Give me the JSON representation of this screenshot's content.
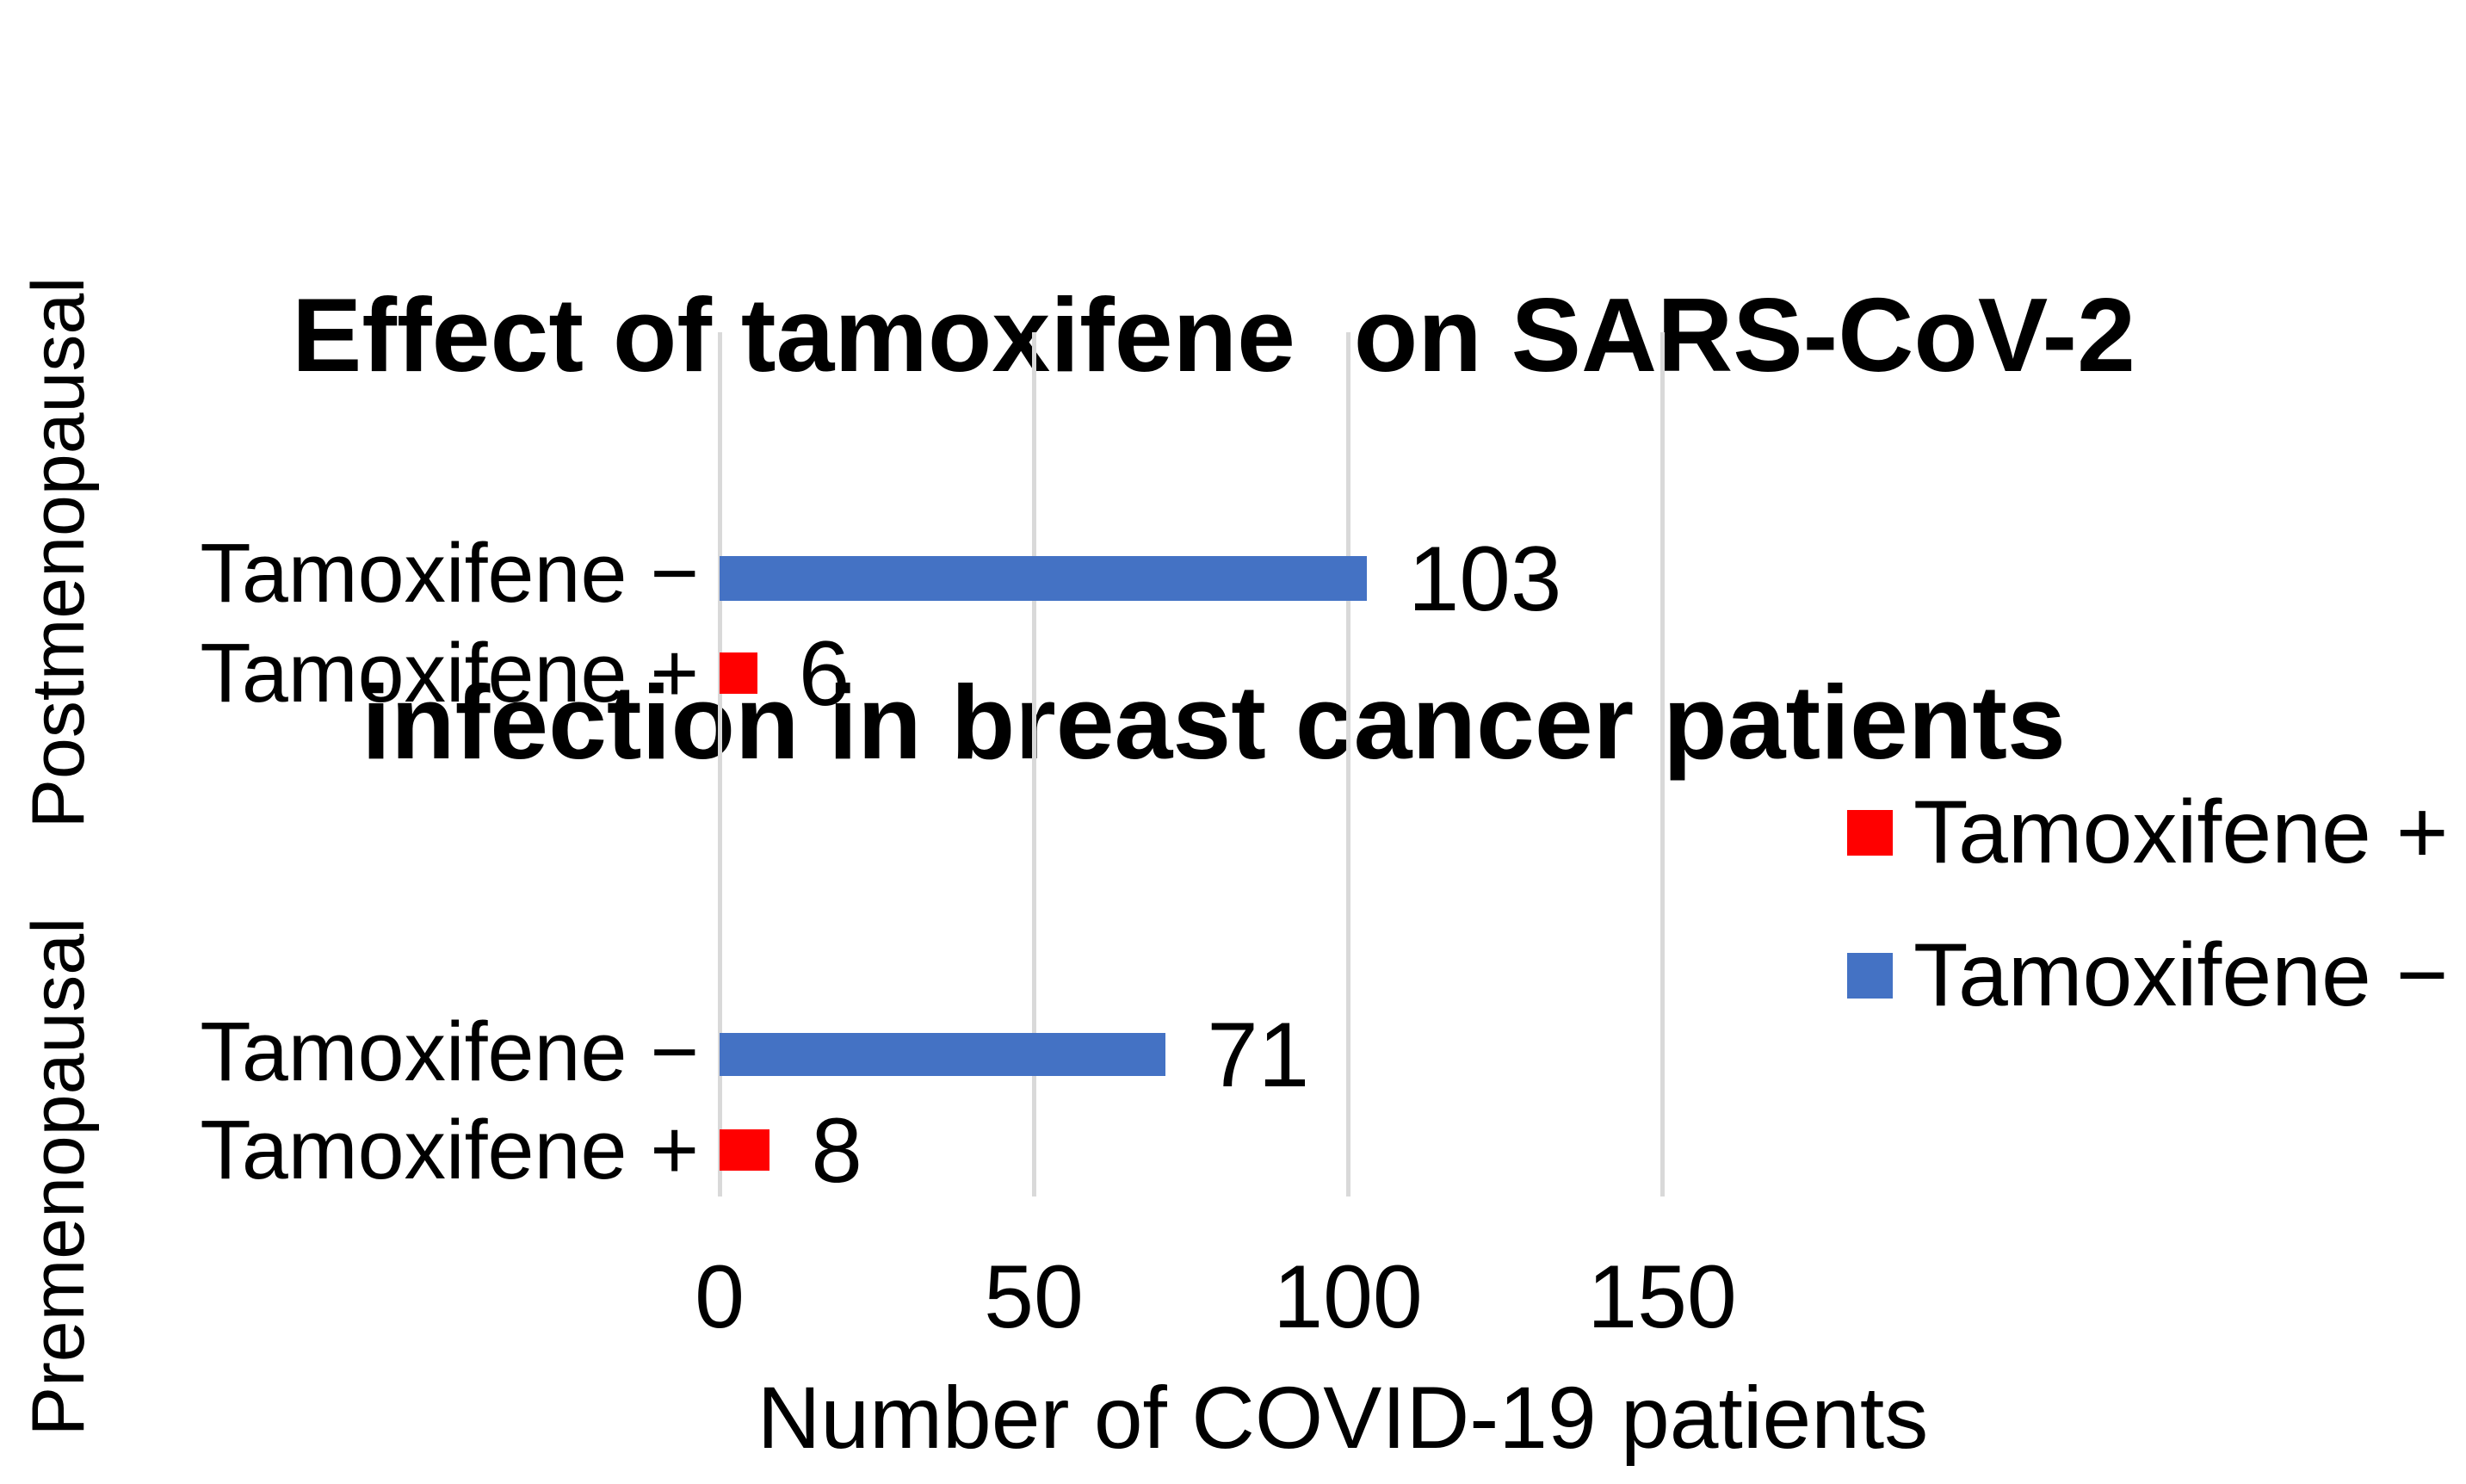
{
  "title": {
    "line1": "Effect of tamoxifene  on SARS-CoV-2",
    "line2": "infection in breast cancer patients"
  },
  "chart_data": {
    "type": "bar",
    "orientation": "horizontal",
    "title": "Effect of tamoxifene  on SARS-CoV-2 infection in breast cancer patients",
    "xlabel": "Number of COVID-19 patients",
    "x_ticks": [
      "0",
      "50",
      "100",
      "150"
    ],
    "x_tick_values": [
      0,
      50,
      100,
      150
    ],
    "xlim": [
      0,
      168
    ],
    "grid": "vertical-gridlines-on",
    "legend_position": "right",
    "groups": [
      {
        "group": "Postmenopausal",
        "bars": [
          {
            "category": "Tamoxifene −",
            "series": "Tamoxifene −",
            "value": 103,
            "color": "#4472C4"
          },
          {
            "category": "Tamoxifene +",
            "series": "Tamoxifene +",
            "value": 6,
            "color": "#FF0000"
          }
        ]
      },
      {
        "group": "Premenopausal",
        "bars": [
          {
            "category": "Tamoxifene −",
            "series": "Tamoxifene −",
            "value": 71,
            "color": "#4472C4"
          },
          {
            "category": "Tamoxifene +",
            "series": "Tamoxifene +",
            "value": 8,
            "color": "#FF0000"
          }
        ]
      }
    ]
  },
  "legend": {
    "items": [
      {
        "label": "Tamoxifene +",
        "color": "#FF0000"
      },
      {
        "label": "Tamoxifene −",
        "color": "#4472C4"
      }
    ]
  },
  "colors": {
    "bar_blue": "#4472C4",
    "bar_red": "#FF0000",
    "gridline": "#D9D9D9",
    "text": "#000000",
    "background": "#FFFFFF"
  }
}
